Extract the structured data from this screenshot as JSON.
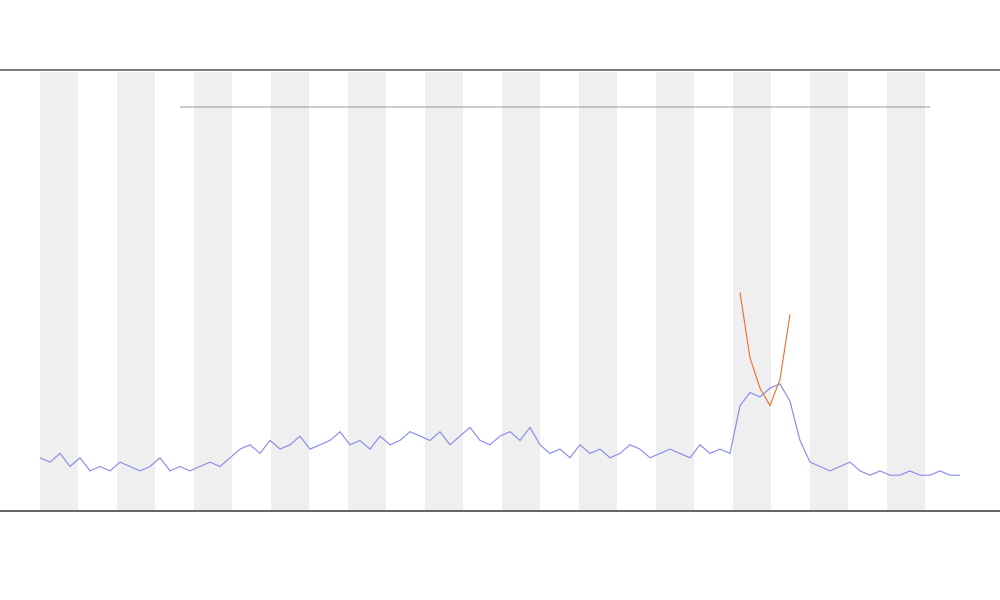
{
  "chart_data": {
    "type": "line",
    "ylim": [
      0,
      100
    ],
    "series": [
      {
        "color": "#8a8ee8",
        "values": [
          12,
          11,
          13,
          10,
          12,
          9,
          10,
          9,
          11,
          10,
          9,
          10,
          12,
          9,
          10,
          9,
          10,
          11,
          10,
          12,
          14,
          15,
          13,
          16,
          14,
          15,
          17,
          14,
          15,
          16,
          18,
          15,
          16,
          14,
          17,
          15,
          16,
          18,
          17,
          16,
          18,
          15,
          17,
          19,
          16,
          15,
          17,
          18,
          16,
          19,
          15,
          13,
          14,
          12,
          15,
          13,
          14,
          12,
          13,
          15,
          14,
          12,
          13,
          14,
          13,
          12,
          15,
          13,
          14,
          13,
          24,
          27,
          26,
          28,
          29,
          25,
          16,
          11,
          10,
          9,
          10,
          11,
          9,
          8,
          9,
          8,
          8,
          9,
          8,
          8,
          9,
          8,
          8
        ]
      },
      {
        "color": "#e8763a",
        "values": [
          null,
          null,
          null,
          null,
          null,
          null,
          null,
          null,
          null,
          null,
          null,
          null,
          null,
          null,
          null,
          null,
          null,
          null,
          null,
          null,
          null,
          null,
          null,
          null,
          null,
          null,
          null,
          null,
          null,
          null,
          null,
          null,
          null,
          null,
          null,
          null,
          null,
          null,
          null,
          null,
          null,
          null,
          null,
          null,
          null,
          null,
          null,
          null,
          null,
          null,
          null,
          null,
          null,
          null,
          null,
          null,
          null,
          null,
          null,
          null,
          null,
          null,
          null,
          null,
          null,
          null,
          null,
          null,
          null,
          null,
          50,
          35,
          28,
          24,
          30,
          45,
          null,
          null,
          null,
          null,
          null,
          null,
          null,
          null,
          null,
          null,
          null,
          null,
          null,
          null,
          null,
          null,
          null
        ]
      }
    ]
  }
}
